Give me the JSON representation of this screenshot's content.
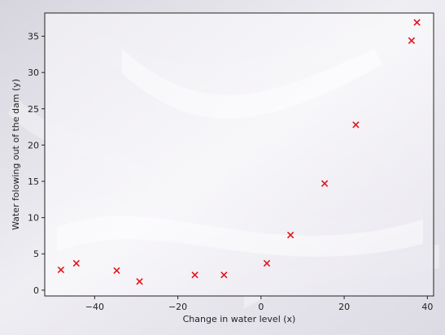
{
  "chart_data": {
    "type": "scatter",
    "xlabel": "Change in water level (x)",
    "ylabel": "Water folowing out of the dam (y)",
    "xlim": [
      -52,
      41.5
    ],
    "ylim": [
      -0.8,
      38.2
    ],
    "xticks": [
      -40,
      -20,
      0,
      20,
      40
    ],
    "xtick_labels": [
      "−40",
      "−20",
      "0",
      "20",
      "40"
    ],
    "yticks": [
      0,
      5,
      10,
      15,
      20,
      25,
      30,
      35
    ],
    "ytick_labels": [
      "0",
      "5",
      "10",
      "15",
      "20",
      "25",
      "30",
      "35"
    ],
    "grid": false,
    "marker": "x",
    "marker_color": "#e0151d",
    "points": [
      {
        "x": -48.1,
        "y": 2.8
      },
      {
        "x": -44.4,
        "y": 3.7
      },
      {
        "x": -34.7,
        "y": 2.7
      },
      {
        "x": -29.2,
        "y": 1.2
      },
      {
        "x": -15.9,
        "y": 2.1
      },
      {
        "x": -8.9,
        "y": 2.1
      },
      {
        "x": 1.4,
        "y": 3.7
      },
      {
        "x": 7.1,
        "y": 7.6
      },
      {
        "x": 15.3,
        "y": 14.7
      },
      {
        "x": 22.8,
        "y": 22.8
      },
      {
        "x": 36.2,
        "y": 34.4
      },
      {
        "x": 37.5,
        "y": 36.9
      }
    ]
  }
}
